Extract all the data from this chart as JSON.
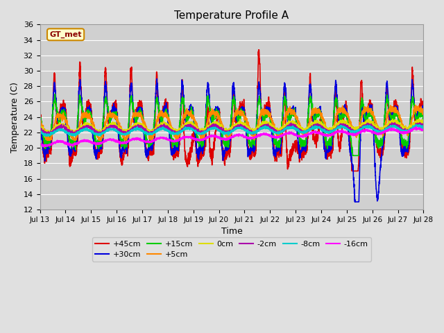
{
  "title": "Temperature Profile A",
  "xlabel": "Time",
  "ylabel": "Temperature (C)",
  "ylim": [
    12,
    36
  ],
  "xlim": [
    0,
    360
  ],
  "yticks": [
    12,
    14,
    16,
    18,
    20,
    22,
    24,
    26,
    28,
    30,
    32,
    34,
    36
  ],
  "xtick_labels": [
    "Jul 13",
    "Jul 14",
    "Jul 15",
    "Jul 16",
    "Jul 17",
    "Jul 18",
    "Jul 19",
    "Jul 20",
    "Jul 21",
    "Jul 22",
    "Jul 23",
    "Jul 24",
    "Jul 25",
    "Jul 26",
    "Jul 27",
    "Jul 28"
  ],
  "xtick_positions": [
    0,
    24,
    48,
    72,
    96,
    120,
    144,
    168,
    192,
    216,
    240,
    264,
    288,
    312,
    336,
    360
  ],
  "series": {
    "+45cm": {
      "color": "#dd0000",
      "lw": 1.2
    },
    "+30cm": {
      "color": "#0000dd",
      "lw": 1.2
    },
    "+15cm": {
      "color": "#00cc00",
      "lw": 1.2
    },
    "+5cm": {
      "color": "#ff8800",
      "lw": 1.2
    },
    "0cm": {
      "color": "#dddd00",
      "lw": 1.2
    },
    "-2cm": {
      "color": "#aa00aa",
      "lw": 1.2
    },
    "-8cm": {
      "color": "#00cccc",
      "lw": 1.2
    },
    "-16cm": {
      "color": "#ff00ff",
      "lw": 1.2
    }
  },
  "gt_met_label": "GT_met",
  "bg_color": "#e0e0e0",
  "plot_bg_color": "#d0d0d0",
  "grid_color": "#ffffff",
  "legend_line_colors": [
    "#dd0000",
    "#0000dd",
    "#00cc00",
    "#ff8800",
    "#dddd00",
    "#aa00aa",
    "#00cccc",
    "#ff00ff"
  ],
  "legend_labels": [
    "+45cm",
    "+30cm",
    "+15cm",
    "+5cm",
    "0cm",
    "-2cm",
    "-8cm",
    "-16cm"
  ]
}
